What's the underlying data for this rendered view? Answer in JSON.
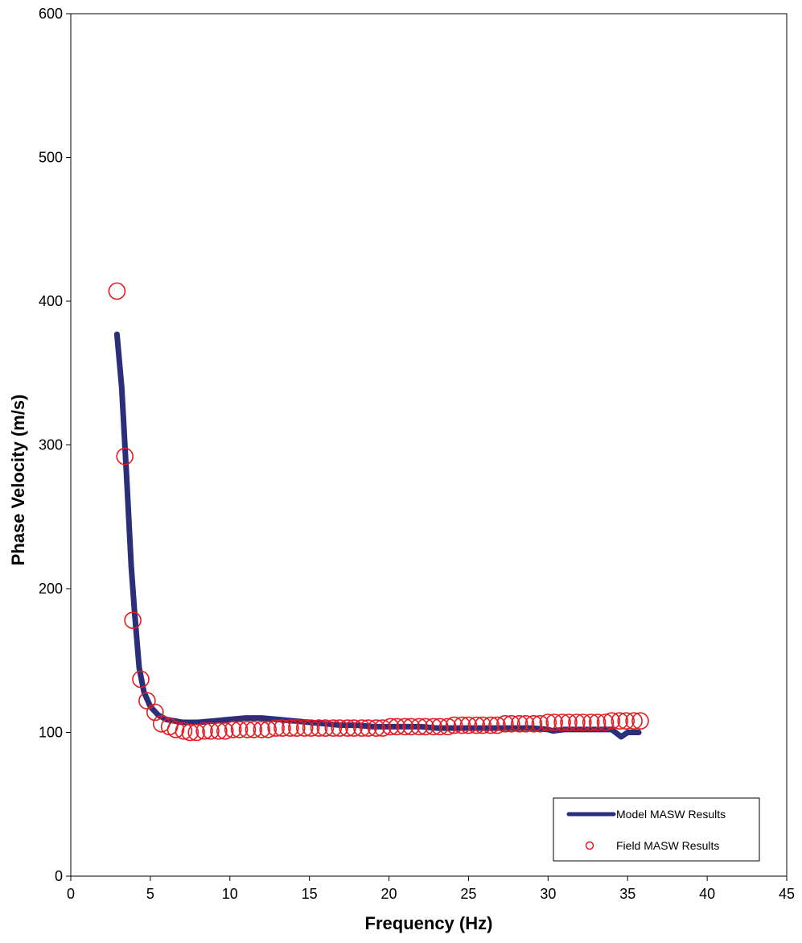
{
  "chart_data": {
    "type": "line",
    "title": "",
    "xlabel": "Frequency (Hz)",
    "ylabel": "Phase Velocity (m/s)",
    "xlim": [
      0,
      45
    ],
    "ylim": [
      0,
      600
    ],
    "x_ticks": [
      "0",
      "5",
      "10",
      "15",
      "20",
      "25",
      "30",
      "35",
      "40",
      "45"
    ],
    "y_ticks": [
      "0",
      "100",
      "200",
      "300",
      "400",
      "500",
      "600"
    ],
    "grid": false,
    "legend_position": "bottom-right",
    "series": [
      {
        "name": "Model MASW Results",
        "type": "line",
        "color": "#2b2f7a",
        "x": [
          2.9,
          3.2,
          3.5,
          3.8,
          4.0,
          4.3,
          4.6,
          5.0,
          5.5,
          6.0,
          6.5,
          7.0,
          8.0,
          9.0,
          10.0,
          11.0,
          12.0,
          13.0,
          14.0,
          15.0,
          16.0,
          17.0,
          18.0,
          19.0,
          20.0,
          21.0,
          22.0,
          23.0,
          24.0,
          25.0,
          26.0,
          27.0,
          28.0,
          29.0,
          30.0,
          30.3,
          31.0,
          32.0,
          33.0,
          34.0,
          34.6,
          35.0,
          35.3,
          35.7
        ],
        "y": [
          377,
          340,
          280,
          215,
          185,
          145,
          128,
          118,
          112,
          109,
          108,
          107,
          107,
          108,
          109,
          110,
          110,
          109,
          108,
          107,
          106,
          105,
          105,
          104,
          104,
          104,
          104,
          103,
          103,
          103,
          103,
          103,
          103,
          103,
          102,
          101,
          102,
          102,
          102,
          102,
          97,
          100,
          100,
          100
        ]
      },
      {
        "name": "Field MASW Results",
        "type": "scatter",
        "color": "#e31b23",
        "x": [
          2.9,
          3.4,
          3.9,
          4.4,
          4.8,
          5.3,
          5.7,
          6.2,
          6.6,
          7.1,
          7.5,
          7.9,
          8.4,
          8.8,
          9.3,
          9.7,
          10.2,
          10.6,
          11.1,
          11.5,
          12.0,
          12.4,
          12.9,
          13.3,
          13.8,
          14.2,
          14.7,
          15.1,
          15.6,
          16.0,
          16.5,
          16.9,
          17.4,
          17.8,
          18.3,
          18.7,
          19.2,
          19.6,
          20.1,
          20.5,
          21.0,
          21.4,
          21.9,
          22.3,
          22.8,
          23.2,
          23.7,
          24.1,
          24.6,
          25.0,
          25.5,
          25.9,
          26.4,
          26.8,
          27.3,
          27.7,
          28.2,
          28.6,
          29.1,
          29.5,
          30.0,
          30.4,
          30.9,
          31.3,
          31.8,
          32.2,
          32.7,
          33.1,
          33.6,
          34.0,
          34.5,
          34.9,
          35.4,
          35.8
        ],
        "y": [
          407,
          292,
          178,
          137,
          122,
          114,
          106,
          104,
          102,
          101,
          100,
          100,
          101,
          101,
          101,
          101,
          102,
          102,
          102,
          102,
          102,
          102,
          103,
          103,
          103,
          103,
          103,
          103,
          103,
          103,
          103,
          103,
          103,
          103,
          103,
          103,
          103,
          103,
          104,
          104,
          104,
          104,
          104,
          104,
          104,
          104,
          104,
          105,
          105,
          105,
          105,
          105,
          105,
          105,
          106,
          106,
          106,
          106,
          106,
          106,
          107,
          107,
          107,
          107,
          107,
          107,
          107,
          107,
          107,
          108,
          108,
          108,
          108,
          108
        ]
      }
    ]
  }
}
